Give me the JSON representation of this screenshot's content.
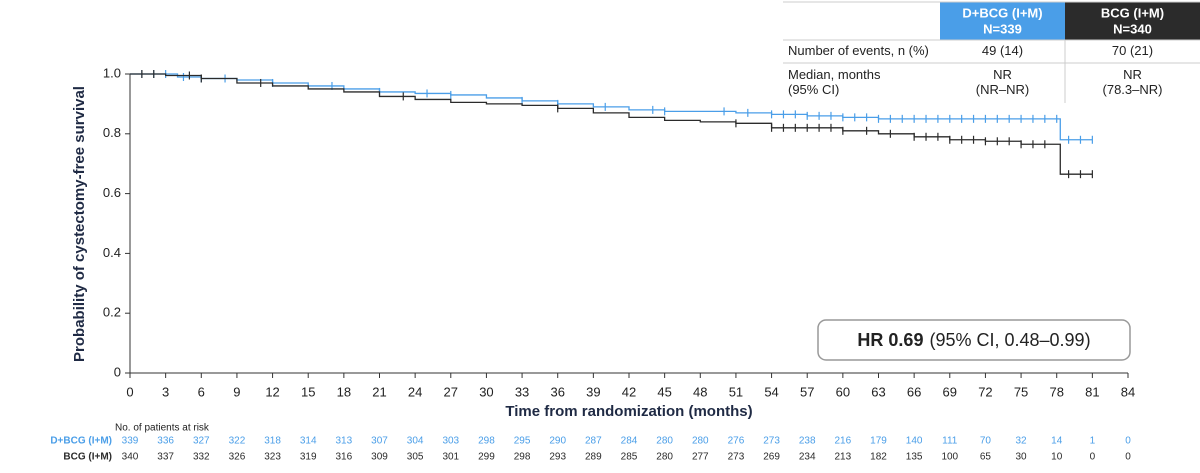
{
  "table": {
    "columns": [
      {
        "n": "N=339"
      },
      {
        "n": "N=340"
      }
    ],
    "rows": [
      {
        "label": [
          "Number of events, n (%)"
        ],
        "cells": [
          [
            "49 (14)"
          ],
          [
            "70 (21)"
          ]
        ]
      },
      {
        "label": [
          "Median, months",
          "(95% CI)"
        ],
        "cells": [
          [
            "NR",
            "(NR–NR)"
          ],
          [
            "NR",
            "(78.3–NR)"
          ]
        ]
      }
    ]
  },
  "hr": {
    "label": "HR 0.69",
    "ci": "(95% CI, 0.48–0.99)"
  },
  "risk_table": {
    "title": "No. of patients at risk",
    "rows": [
      [
        339,
        336,
        327,
        322,
        318,
        314,
        313,
        307,
        304,
        303,
        298,
        295,
        290,
        287,
        284,
        280,
        280,
        276,
        273,
        238,
        216,
        179,
        140,
        111,
        70,
        32,
        14,
        1,
        0
      ],
      [
        340,
        337,
        332,
        326,
        323,
        319,
        316,
        309,
        305,
        301,
        299,
        298,
        293,
        289,
        285,
        280,
        277,
        273,
        269,
        234,
        213,
        182,
        135,
        100,
        65,
        30,
        10,
        0,
        0
      ]
    ]
  },
  "chart_data": {
    "type": "step",
    "xlabel": "Time from randomization (months)",
    "ylabel": "Probability of cystectomy-free survival",
    "xlim": [
      0,
      84
    ],
    "xticks": [
      0,
      3,
      6,
      9,
      12,
      15,
      18,
      21,
      24,
      27,
      30,
      33,
      36,
      39,
      42,
      45,
      48,
      51,
      54,
      57,
      60,
      63,
      66,
      69,
      72,
      75,
      78,
      81,
      84
    ],
    "ylim": [
      0,
      1
    ],
    "yticks": [
      0,
      0.2,
      0.4,
      0.6,
      0.8,
      {
        "value": 1,
        "label": "1.0"
      }
    ],
    "series": [
      {
        "name": "D+BCG (I+M)",
        "color": "#4a9ee8",
        "x": [
          0,
          4,
          6,
          9,
          12,
          15,
          18,
          21,
          24,
          27,
          30,
          33,
          36,
          39,
          42,
          45,
          51,
          54,
          57,
          60,
          63,
          78.3,
          81
        ],
        "values": [
          1.0,
          0.99,
          0.985,
          0.98,
          0.97,
          0.96,
          0.95,
          0.94,
          0.935,
          0.93,
          0.92,
          0.91,
          0.9,
          0.89,
          0.88,
          0.875,
          0.87,
          0.865,
          0.86,
          0.855,
          0.85,
          0.78,
          0.78
        ],
        "censor_x": [
          1,
          2,
          3,
          4.5,
          6,
          8,
          12,
          17,
          21,
          25,
          27,
          33,
          36,
          40,
          44,
          45,
          50,
          52,
          54,
          55,
          56,
          57,
          58,
          59,
          60,
          61,
          62,
          63,
          64,
          65,
          66,
          67,
          68,
          69,
          70,
          71,
          72,
          73,
          74,
          75,
          76,
          77,
          78,
          79,
          80,
          81
        ]
      },
      {
        "name": "BCG (I+M)",
        "color": "#2b2b2b",
        "x": [
          0,
          3,
          6,
          9,
          12,
          15,
          18,
          21,
          24,
          27,
          30,
          33,
          36,
          39,
          42,
          45,
          48,
          51,
          54,
          60,
          63,
          66,
          69,
          72,
          75,
          78.3,
          81
        ],
        "values": [
          1.0,
          0.995,
          0.985,
          0.97,
          0.96,
          0.95,
          0.94,
          0.925,
          0.915,
          0.905,
          0.9,
          0.895,
          0.885,
          0.87,
          0.855,
          0.845,
          0.84,
          0.835,
          0.82,
          0.81,
          0.8,
          0.79,
          0.78,
          0.775,
          0.765,
          0.665,
          0.665
        ],
        "censor_x": [
          1,
          2,
          5,
          6,
          11,
          23,
          36,
          51,
          54,
          55,
          56,
          57,
          58,
          59,
          60,
          62,
          64,
          66,
          67,
          68,
          69,
          70,
          71,
          72,
          73,
          74,
          75,
          76,
          77,
          79,
          80,
          81
        ]
      }
    ]
  }
}
